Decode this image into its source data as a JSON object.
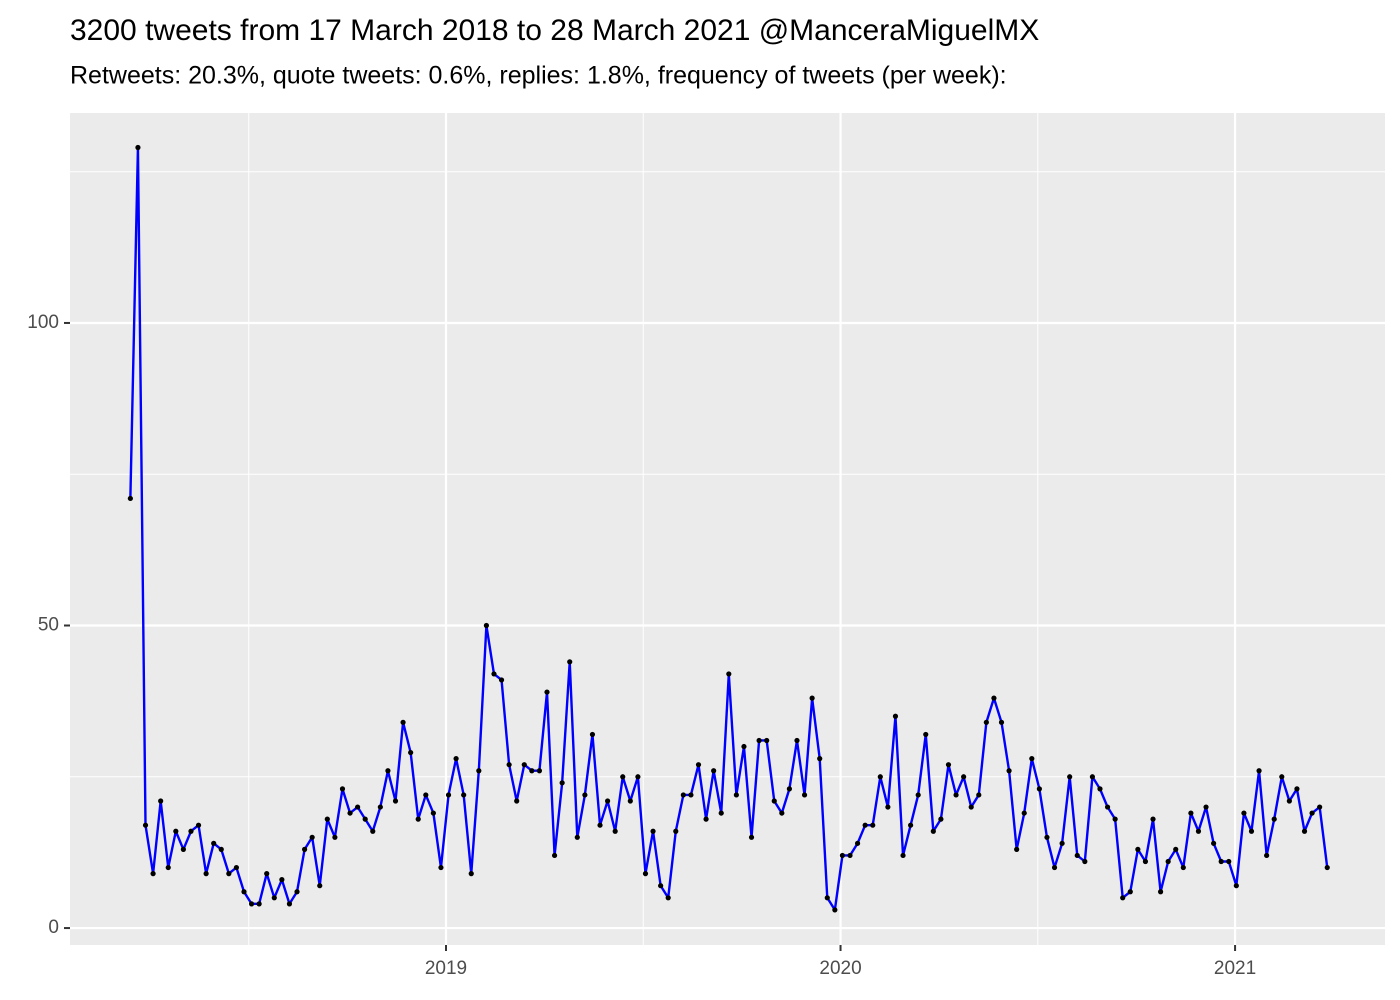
{
  "chart_data": {
    "type": "line",
    "title": "3200 tweets from 17 March 2018 to 28 March 2021 @ManceraMiguelMX",
    "subtitle": "Retweets: 20.3%, quote tweets: 0.6%, replies: 1.8%, frequency of tweets (per week):",
    "x": [
      2018.2,
      2018.2192,
      2018.2384,
      2018.2576,
      2018.2768,
      2018.296,
      2018.3152,
      2018.3344,
      2018.3536,
      2018.3728,
      2018.392,
      2018.4112,
      2018.4304,
      2018.4496,
      2018.4688,
      2018.488,
      2018.5072,
      2018.5264,
      2018.5456,
      2018.5648,
      2018.584,
      2018.6032,
      2018.6224,
      2018.6416,
      2018.6608,
      2018.68,
      2018.6992,
      2018.7184,
      2018.7376,
      2018.7568,
      2018.776,
      2018.7952,
      2018.8144,
      2018.8336,
      2018.8528,
      2018.872,
      2018.8912,
      2018.9104,
      2018.9296,
      2018.9488,
      2018.968,
      2018.9872,
      2019.0064,
      2019.0256,
      2019.0448,
      2019.064,
      2019.0832,
      2019.1024,
      2019.1216,
      2019.1408,
      2019.16,
      2019.1792,
      2019.1984,
      2019.2176,
      2019.2368,
      2019.256,
      2019.2752,
      2019.2944,
      2019.3136,
      2019.3328,
      2019.352,
      2019.3712,
      2019.3904,
      2019.4096,
      2019.4288,
      2019.448,
      2019.4672,
      2019.4864,
      2019.5056,
      2019.5248,
      2019.544,
      2019.5632,
      2019.5824,
      2019.6016,
      2019.6208,
      2019.64,
      2019.6592,
      2019.6784,
      2019.6976,
      2019.7168,
      2019.736,
      2019.7552,
      2019.7744,
      2019.7936,
      2019.8128,
      2019.832,
      2019.8512,
      2019.8704,
      2019.8896,
      2019.9088,
      2019.928,
      2019.9472,
      2019.9664,
      2019.9856,
      2020.0048,
      2020.024,
      2020.0432,
      2020.0624,
      2020.0816,
      2020.1008,
      2020.12,
      2020.1392,
      2020.1584,
      2020.1776,
      2020.1968,
      2020.216,
      2020.2352,
      2020.2544,
      2020.2736,
      2020.2928,
      2020.312,
      2020.3312,
      2020.3504,
      2020.3696,
      2020.3888,
      2020.408,
      2020.4272,
      2020.4464,
      2020.4656,
      2020.4848,
      2020.504,
      2020.5232,
      2020.5424,
      2020.5616,
      2020.5808,
      2020.6,
      2020.6192,
      2020.6384,
      2020.6576,
      2020.6768,
      2020.696,
      2020.7152,
      2020.7344,
      2020.7536,
      2020.7728,
      2020.792,
      2020.8112,
      2020.8304,
      2020.8496,
      2020.8688,
      2020.888,
      2020.9072,
      2020.9264,
      2020.9456,
      2020.9648,
      2020.984,
      2021.0032,
      2021.0224,
      2021.0416,
      2021.0608,
      2021.08,
      2021.0992,
      2021.1184,
      2021.1376,
      2021.1568,
      2021.176,
      2021.1952,
      2021.2144,
      2021.2336
    ],
    "values": [
      71,
      129,
      17,
      9,
      21,
      10,
      16,
      13,
      16,
      17,
      9,
      14,
      13,
      9,
      10,
      6,
      4,
      4,
      9,
      5,
      8,
      4,
      6,
      13,
      15,
      7,
      18,
      15,
      23,
      19,
      20,
      18,
      16,
      20,
      26,
      21,
      34,
      29,
      18,
      22,
      19,
      10,
      22,
      28,
      22,
      9,
      26,
      50,
      42,
      41,
      27,
      21,
      27,
      26,
      26,
      39,
      12,
      24,
      44,
      15,
      22,
      32,
      17,
      21,
      16,
      25,
      21,
      25,
      9,
      16,
      7,
      5,
      16,
      22,
      22,
      27,
      18,
      26,
      19,
      42,
      22,
      30,
      15,
      31,
      31,
      21,
      19,
      23,
      31,
      22,
      38,
      28,
      5,
      3,
      12,
      12,
      14,
      17,
      17,
      25,
      20,
      35,
      12,
      17,
      22,
      32,
      16,
      18,
      27,
      22,
      25,
      20,
      22,
      34,
      38,
      34,
      26,
      13,
      19,
      28,
      23,
      15,
      10,
      14,
      25,
      12,
      11,
      25,
      23,
      20,
      18,
      5,
      6,
      13,
      11,
      18,
      6,
      11,
      13,
      10,
      19,
      16,
      20,
      14,
      11,
      11,
      7,
      19,
      16,
      26,
      12,
      18,
      25,
      21,
      23,
      16,
      19,
      20,
      10
    ],
    "color": "#0000ff",
    "marker_color": "#000000",
    "xlim": [
      2018.047,
      2021.38
    ],
    "xticks": [
      2019,
      2020,
      2021
    ],
    "xminor": [
      2018.5,
      2019.5,
      2020.5
    ],
    "ylim": [
      -2.8,
      134.7
    ],
    "yticks": [
      0,
      50,
      100
    ],
    "yminor": [
      25,
      75,
      125
    ],
    "grid": true
  }
}
